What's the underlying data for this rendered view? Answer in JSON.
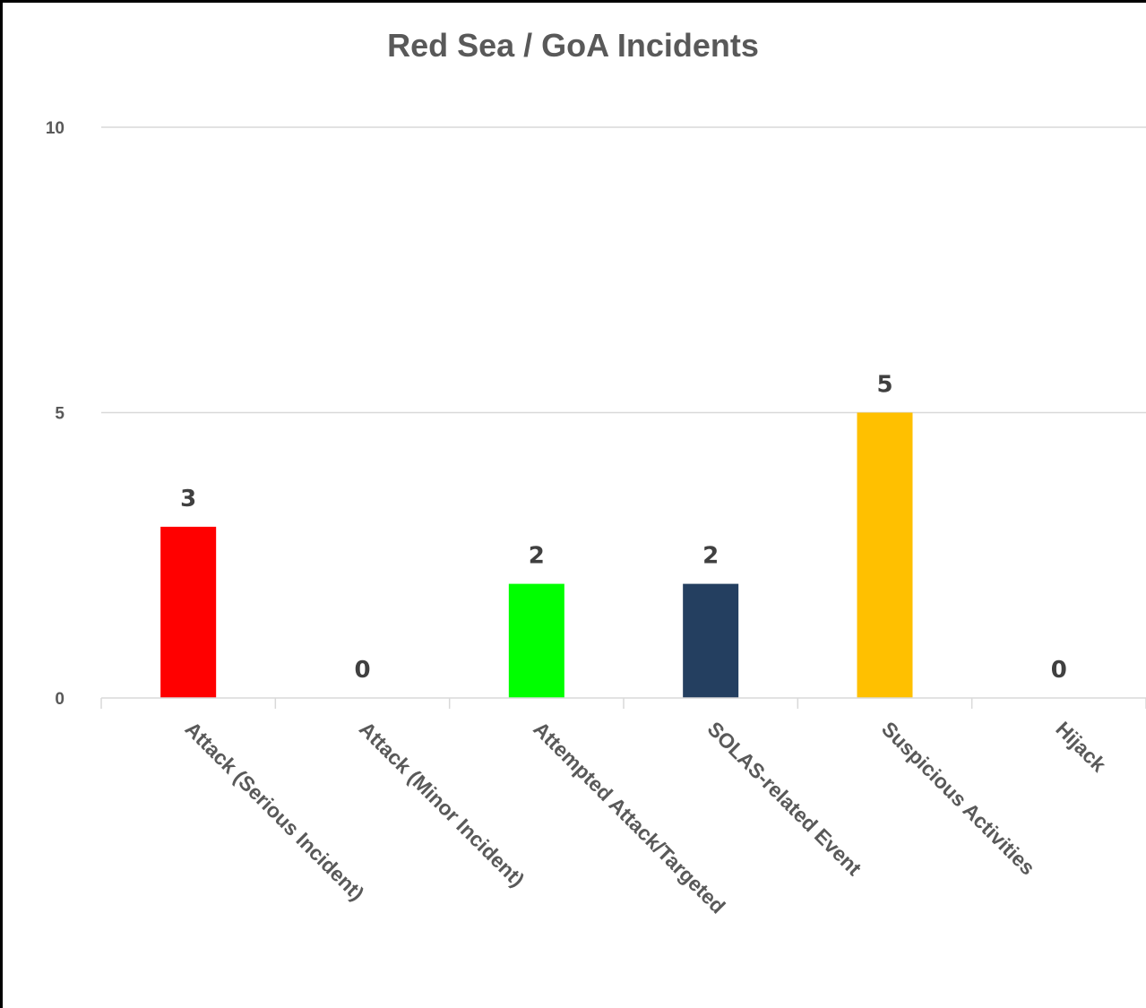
{
  "chart_data": {
    "type": "bar",
    "title": "Red Sea / GoA Incidents",
    "xlabel": "",
    "ylabel": "",
    "categories": [
      "Attack (Serious Incident)",
      "Attack (Minor Incident)",
      "Attempted Attack/Targeted",
      "SOLAS-related Event",
      "Suspicious Activities",
      "Hijack"
    ],
    "values": [
      3,
      0,
      2,
      2,
      5,
      0
    ],
    "colors": [
      "#ff0000",
      "#ffffff",
      "#00ff00",
      "#243f60",
      "#ffc000",
      "#ffffff"
    ],
    "ylim": [
      0,
      10
    ],
    "yticks": [
      0,
      5,
      10
    ],
    "grid": true,
    "legend": "none",
    "data_labels": true
  }
}
